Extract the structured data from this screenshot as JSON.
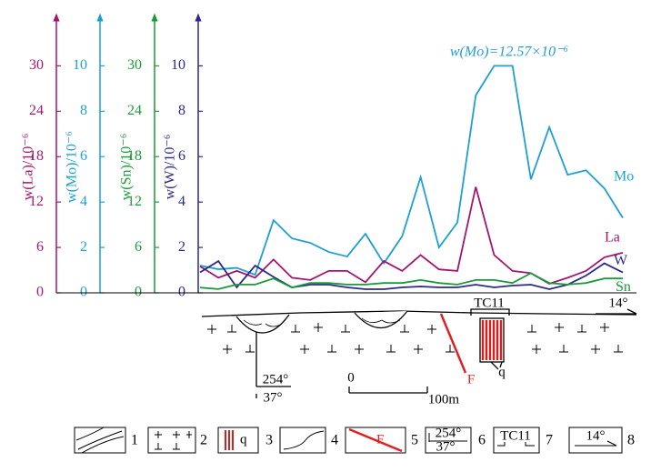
{
  "chart_data": {
    "type": "line",
    "annotation": "w(Mo)=12.57×10⁻⁶",
    "categories": [
      null,
      null,
      null,
      null,
      null,
      null,
      null,
      null,
      null,
      null,
      null,
      null,
      null,
      null,
      null,
      null,
      null,
      null,
      null,
      null,
      null,
      null,
      null,
      null
    ],
    "axes": [
      {
        "title": "w(La)/10⁻⁶",
        "color": "#a3166f",
        "ylim": [
          0,
          36.9
        ],
        "yticks": [
          0,
          6,
          12,
          18,
          24,
          30
        ]
      },
      {
        "title": "w(Mo)/10⁻⁶",
        "color": "#1e9fd3",
        "ylim": [
          0,
          12.3
        ],
        "yticks": [
          0,
          2,
          4,
          6,
          8,
          10
        ]
      },
      {
        "title": "w(Sn)/10⁻⁶",
        "color": "#1a9a3a",
        "ylim": [
          0,
          36.9
        ],
        "yticks": [
          0,
          6,
          12,
          18,
          24,
          30
        ]
      },
      {
        "title": "w(W)/10⁻⁶",
        "color": "#2b2a8a",
        "ylim": [
          0,
          12.3
        ],
        "yticks": [
          0,
          2,
          4,
          6,
          8,
          10
        ]
      }
    ],
    "series": [
      {
        "name": "Mo",
        "color": "#1e9fd3",
        "axis": 1,
        "values": [
          1.2,
          1.04,
          1.1,
          0.8,
          3.2,
          2.4,
          2.2,
          1.8,
          1.6,
          2.6,
          1.3,
          2.5,
          5.1,
          2.0,
          3.1,
          8.7,
          10,
          10,
          5.0,
          7.3,
          5.2,
          5.4,
          4.6,
          3.3
        ]
      },
      {
        "name": "La",
        "color": "#a3166f",
        "axis": 0,
        "values": [
          3.5,
          2.0,
          2.9,
          2.0,
          4.4,
          2.0,
          1.7,
          2.9,
          2.9,
          1.4,
          4.2,
          2.9,
          5.0,
          3.1,
          2.9,
          14.0,
          5.0,
          2.9,
          2.6,
          1.2,
          2.0,
          2.9,
          4.7,
          5.3
        ]
      },
      {
        "name": "W",
        "color": "#2b2a8a",
        "axis": 3,
        "values": [
          0.9,
          1.4,
          0.24,
          1.2,
          0.7,
          0.24,
          0.36,
          0.36,
          0.24,
          0.16,
          0.16,
          0.24,
          0.28,
          0.24,
          0.24,
          0.36,
          0.24,
          0.32,
          0.36,
          0.16,
          0.36,
          0.76,
          1.3,
          0.9
        ]
      },
      {
        "name": "Sn",
        "color": "#1a9a3a",
        "axis": 2,
        "values": [
          0.7,
          0.5,
          1.1,
          1.1,
          1.9,
          0.7,
          1.3,
          1.3,
          1.1,
          1.1,
          1.3,
          1.3,
          1.7,
          1.3,
          1.1,
          1.7,
          1.7,
          1.3,
          2.6,
          1.3,
          1.1,
          1.3,
          1.9,
          1.9
        ]
      }
    ]
  },
  "section": {
    "trench": "TC11",
    "azimuth": "14°",
    "fault": "F",
    "vein": "q",
    "strike": "254°",
    "dip": "37°",
    "scale_start": "0",
    "scale_end": "100m"
  },
  "legend": {
    "numbers": [
      "1",
      "2",
      "3",
      "4",
      "5",
      "6",
      "7",
      "8"
    ],
    "fault": "F",
    "vein": "q",
    "strike": "254°",
    "dip": "37°",
    "trench": "TC11",
    "azimuth": "14°"
  }
}
